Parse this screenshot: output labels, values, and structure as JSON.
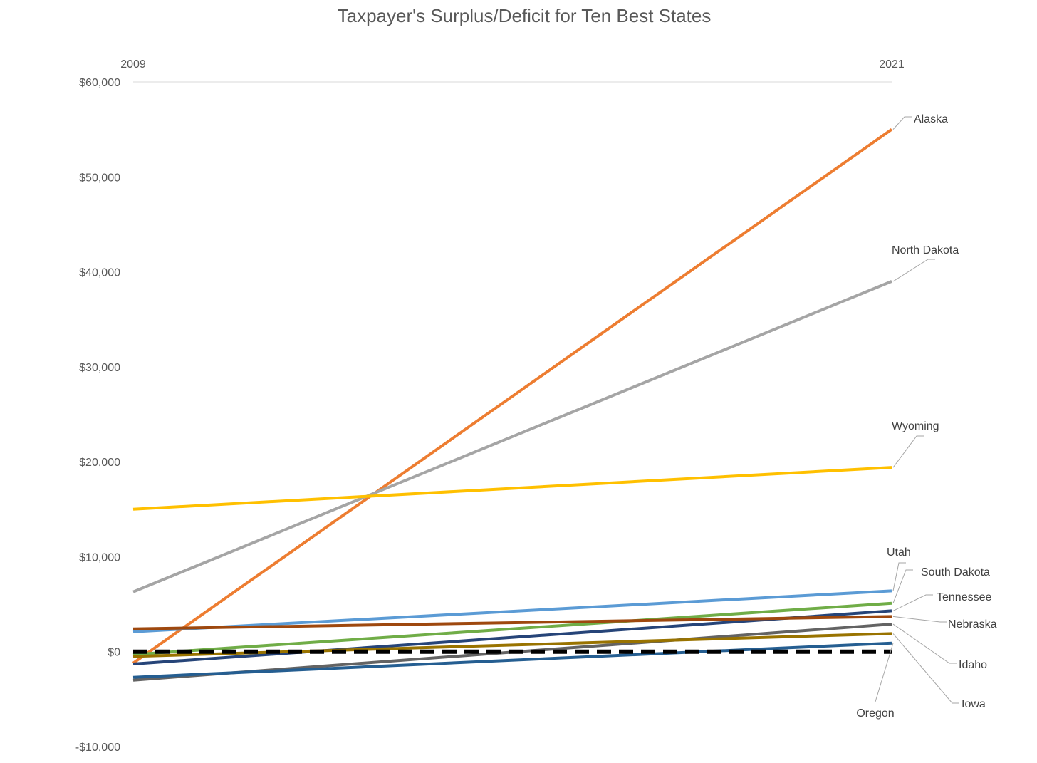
{
  "chart_data": {
    "type": "line",
    "title": "Taxpayer's Surplus/Deficit for Ten Best States",
    "x": [
      "2009",
      "2021"
    ],
    "ylim": [
      -10000,
      60000
    ],
    "yticks": [
      -10000,
      0,
      10000,
      20000,
      30000,
      40000,
      50000,
      60000
    ],
    "ytick_labels": [
      "-$10,000",
      "$0",
      "$10,000",
      "$20,000",
      "$30,000",
      "$40,000",
      "$50,000",
      "$60,000"
    ],
    "grid": false,
    "legend": "direct-labels-right",
    "series": [
      {
        "name": "Alaska",
        "values": [
          -1200,
          55000
        ],
        "color": "#ED7D31"
      },
      {
        "name": "North Dakota",
        "values": [
          6300,
          39000
        ],
        "color": "#A5A5A5"
      },
      {
        "name": "Wyoming",
        "values": [
          15000,
          19400
        ],
        "color": "#FFC000"
      },
      {
        "name": "Utah",
        "values": [
          2100,
          6400
        ],
        "color": "#5B9BD5"
      },
      {
        "name": "South Dakota",
        "values": [
          -300,
          5100
        ],
        "color": "#70AD47"
      },
      {
        "name": "Tennessee",
        "values": [
          -1300,
          4300
        ],
        "color": "#264478"
      },
      {
        "name": "Nebraska",
        "values": [
          2400,
          3700
        ],
        "color": "#9E480E"
      },
      {
        "name": "Idaho",
        "values": [
          -3000,
          2900
        ],
        "color": "#636363"
      },
      {
        "name": "Iowa",
        "values": [
          -500,
          1900
        ],
        "color": "#997300"
      },
      {
        "name": "Oregon",
        "values": [
          -2700,
          900
        ],
        "color": "#255E91"
      }
    ],
    "reference_line": {
      "value": 0,
      "style": "dashed",
      "color": "#000000"
    }
  }
}
